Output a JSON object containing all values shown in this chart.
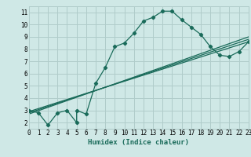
{
  "xlabel": "Humidex (Indice chaleur)",
  "xlim": [
    0,
    23
  ],
  "ylim": [
    1.5,
    11.5
  ],
  "xticks": [
    0,
    1,
    2,
    3,
    4,
    5,
    6,
    7,
    8,
    9,
    10,
    11,
    12,
    13,
    14,
    15,
    16,
    17,
    18,
    19,
    20,
    21,
    22,
    23
  ],
  "yticks": [
    2,
    3,
    4,
    5,
    6,
    7,
    8,
    9,
    10,
    11
  ],
  "bg_color": "#cfe8e6",
  "grid_color": "#b0ccca",
  "line_color": "#1a6b5a",
  "series1_x": [
    0,
    1,
    2,
    3,
    4,
    5,
    5,
    6,
    7,
    8,
    9,
    10,
    11,
    12,
    13,
    14,
    15,
    16,
    17,
    18,
    19,
    20,
    21,
    22,
    23
  ],
  "series1_y": [
    3.0,
    2.8,
    1.8,
    2.8,
    3.0,
    2.0,
    3.0,
    2.7,
    5.2,
    6.5,
    8.2,
    8.5,
    9.3,
    10.3,
    10.6,
    11.1,
    11.1,
    10.4,
    9.8,
    9.2,
    8.2,
    7.5,
    7.4,
    7.8,
    8.6
  ],
  "series2_x": [
    0,
    23
  ],
  "series2_y": [
    2.9,
    8.6
  ],
  "series3_x": [
    0,
    23
  ],
  "series3_y": [
    2.8,
    8.8
  ],
  "series4_x": [
    0,
    23
  ],
  "series4_y": [
    2.7,
    9.0
  ],
  "marker": "D",
  "markersize": 2.2,
  "linewidth": 0.9,
  "xlabel_fontsize": 6.5,
  "tick_fontsize": 5.5
}
